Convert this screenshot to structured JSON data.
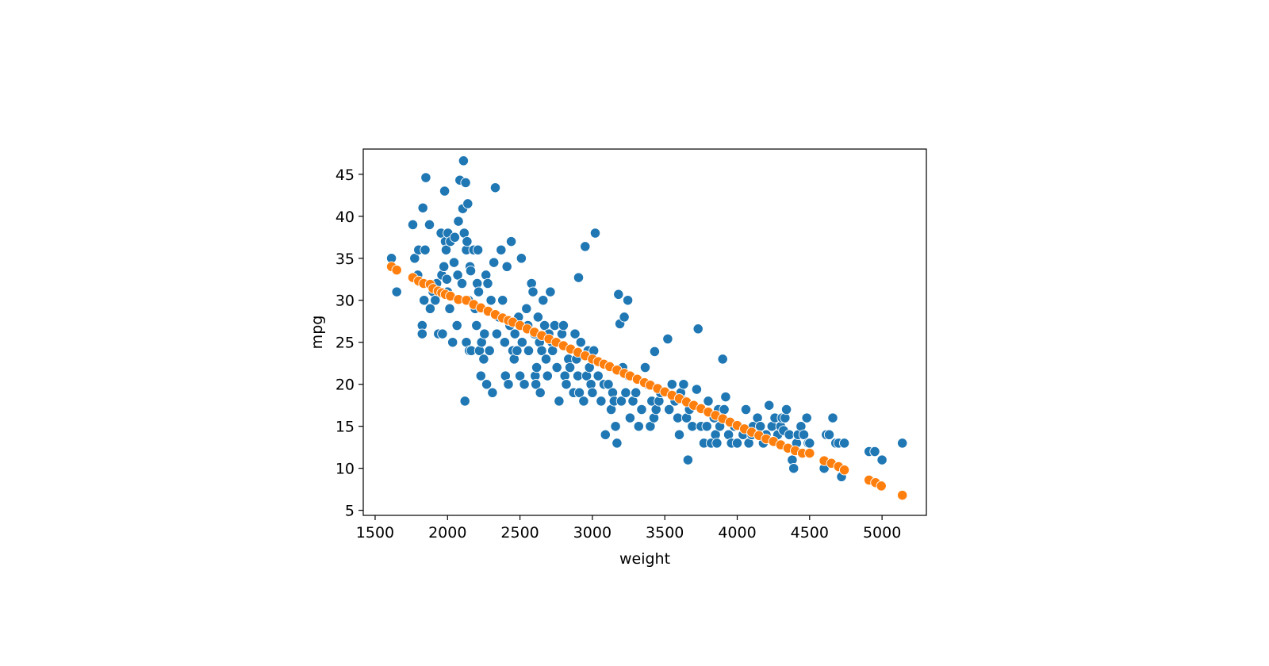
{
  "chart_data": {
    "type": "scatter",
    "title": "",
    "xlabel": "weight",
    "ylabel": "mpg",
    "xlim": [
      1418,
      5306
    ],
    "ylim": [
      4.4,
      48.0
    ],
    "xticks": [
      1500,
      2000,
      2500,
      3000,
      3500,
      4000,
      4500,
      5000
    ],
    "yticks": [
      5,
      10,
      15,
      20,
      25,
      30,
      35,
      40,
      45
    ],
    "grid": false,
    "legend": "none",
    "series": [
      {
        "color": "#1f77b4",
        "points": [
          [
            1613,
            35
          ],
          [
            1649,
            31
          ],
          [
            1760,
            39
          ],
          [
            1773,
            35
          ],
          [
            1795,
            33
          ],
          [
            1800,
            36
          ],
          [
            1825,
            27
          ],
          [
            1825,
            26
          ],
          [
            1830,
            41
          ],
          [
            1835,
            32
          ],
          [
            1838,
            30
          ],
          [
            1845,
            36
          ],
          [
            1850,
            44.6
          ],
          [
            1875,
            39
          ],
          [
            1880,
            29
          ],
          [
            1900,
            31
          ],
          [
            1915,
            30
          ],
          [
            1925,
            32
          ],
          [
            1937,
            26
          ],
          [
            1955,
            38
          ],
          [
            1960,
            33
          ],
          [
            1965,
            26
          ],
          [
            1975,
            34
          ],
          [
            1980,
            43
          ],
          [
            1985,
            37
          ],
          [
            1990,
            36
          ],
          [
            1995,
            32.5
          ],
          [
            2000,
            31
          ],
          [
            2003,
            38
          ],
          [
            2015,
            29
          ],
          [
            2020,
            37
          ],
          [
            2035,
            25
          ],
          [
            2045,
            34.5
          ],
          [
            2050,
            37.5
          ],
          [
            2065,
            27
          ],
          [
            2070,
            33
          ],
          [
            2075,
            39.4
          ],
          [
            2085,
            44.3
          ],
          [
            2100,
            32
          ],
          [
            2105,
            40.9
          ],
          [
            2110,
            46.6
          ],
          [
            2115,
            38
          ],
          [
            2120,
            18
          ],
          [
            2125,
            44
          ],
          [
            2130,
            36
          ],
          [
            2130,
            25
          ],
          [
            2135,
            37
          ],
          [
            2140,
            41.5
          ],
          [
            2145,
            30
          ],
          [
            2150,
            24
          ],
          [
            2155,
            34
          ],
          [
            2160,
            33.5
          ],
          [
            2164,
            24
          ],
          [
            2180,
            36
          ],
          [
            2190,
            29
          ],
          [
            2200,
            27
          ],
          [
            2205,
            32
          ],
          [
            2210,
            36
          ],
          [
            2215,
            31
          ],
          [
            2220,
            24
          ],
          [
            2230,
            21
          ],
          [
            2235,
            25
          ],
          [
            2250,
            23
          ],
          [
            2255,
            26
          ],
          [
            2265,
            33
          ],
          [
            2270,
            20
          ],
          [
            2278,
            32
          ],
          [
            2290,
            24
          ],
          [
            2300,
            30
          ],
          [
            2310,
            19
          ],
          [
            2320,
            34.5
          ],
          [
            2330,
            43.4
          ],
          [
            2340,
            26
          ],
          [
            2355,
            28
          ],
          [
            2370,
            36
          ],
          [
            2380,
            30
          ],
          [
            2395,
            25
          ],
          [
            2400,
            21
          ],
          [
            2410,
            34
          ],
          [
            2420,
            20
          ],
          [
            2430,
            27
          ],
          [
            2440,
            37
          ],
          [
            2450,
            24
          ],
          [
            2460,
            23
          ],
          [
            2465,
            26
          ],
          [
            2480,
            24
          ],
          [
            2490,
            28
          ],
          [
            2500,
            21
          ],
          [
            2510,
            35
          ],
          [
            2515,
            25
          ],
          [
            2530,
            20
          ],
          [
            2545,
            29
          ],
          [
            2555,
            27
          ],
          [
            2560,
            24
          ],
          [
            2580,
            32
          ],
          [
            2590,
            31
          ],
          [
            2600,
            26
          ],
          [
            2605,
            21
          ],
          [
            2610,
            20
          ],
          [
            2615,
            22
          ],
          [
            2625,
            28
          ],
          [
            2635,
            25
          ],
          [
            2640,
            19
          ],
          [
            2650,
            24
          ],
          [
            2660,
            30
          ],
          [
            2670,
            27
          ],
          [
            2680,
            23
          ],
          [
            2690,
            21
          ],
          [
            2700,
            26
          ],
          [
            2710,
            31
          ],
          [
            2720,
            25
          ],
          [
            2725,
            24
          ],
          [
            2740,
            27
          ],
          [
            2755,
            22
          ],
          [
            2770,
            18
          ],
          [
            2790,
            26
          ],
          [
            2800,
            27
          ],
          [
            2810,
            21
          ],
          [
            2820,
            20
          ],
          [
            2835,
            23
          ],
          [
            2845,
            22
          ],
          [
            2870,
            19
          ],
          [
            2880,
            26
          ],
          [
            2890,
            23
          ],
          [
            2900,
            21
          ],
          [
            2905,
            32.7
          ],
          [
            2910,
            19
          ],
          [
            2920,
            25
          ],
          [
            2940,
            18
          ],
          [
            2950,
            36.4
          ],
          [
            2960,
            21
          ],
          [
            2970,
            24
          ],
          [
            2980,
            22
          ],
          [
            2990,
            20
          ],
          [
            3000,
            19
          ],
          [
            3010,
            24
          ],
          [
            3020,
            38
          ],
          [
            3040,
            21
          ],
          [
            3060,
            18
          ],
          [
            3080,
            20
          ],
          [
            3090,
            14
          ],
          [
            3110,
            20
          ],
          [
            3130,
            17
          ],
          [
            3140,
            19
          ],
          [
            3150,
            18
          ],
          [
            3160,
            15
          ],
          [
            3170,
            13
          ],
          [
            3180,
            30.7
          ],
          [
            3190,
            27.2
          ],
          [
            3200,
            18
          ],
          [
            3210,
            22
          ],
          [
            3220,
            28
          ],
          [
            3230,
            19
          ],
          [
            3245,
            30
          ],
          [
            3250,
            21
          ],
          [
            3260,
            16
          ],
          [
            3280,
            18
          ],
          [
            3300,
            19
          ],
          [
            3320,
            15
          ],
          [
            3340,
            17
          ],
          [
            3365,
            22
          ],
          [
            3380,
            20
          ],
          [
            3400,
            15
          ],
          [
            3410,
            18
          ],
          [
            3425,
            16
          ],
          [
            3430,
            23.9
          ],
          [
            3440,
            17
          ],
          [
            3460,
            18
          ],
          [
            3470,
            19
          ],
          [
            3520,
            25.4
          ],
          [
            3530,
            17
          ],
          [
            3550,
            20
          ],
          [
            3570,
            18
          ],
          [
            3590,
            16
          ],
          [
            3600,
            14
          ],
          [
            3610,
            19
          ],
          [
            3630,
            20
          ],
          [
            3640,
            18
          ],
          [
            3650,
            16
          ],
          [
            3660,
            11
          ],
          [
            3670,
            17
          ],
          [
            3690,
            15
          ],
          [
            3720,
            19.4
          ],
          [
            3730,
            26.6
          ],
          [
            3750,
            15
          ],
          [
            3770,
            13
          ],
          [
            3790,
            15
          ],
          [
            3800,
            18
          ],
          [
            3820,
            13
          ],
          [
            3840,
            16
          ],
          [
            3850,
            14
          ],
          [
            3860,
            13
          ],
          [
            3870,
            17
          ],
          [
            3880,
            15
          ],
          [
            3900,
            23
          ],
          [
            3910,
            17
          ],
          [
            3920,
            18.5
          ],
          [
            3940,
            14
          ],
          [
            3960,
            13
          ],
          [
            3980,
            15
          ],
          [
            4000,
            13
          ],
          [
            4040,
            14
          ],
          [
            4060,
            17
          ],
          [
            4080,
            13
          ],
          [
            4100,
            14
          ],
          [
            4110,
            15
          ],
          [
            4140,
            16
          ],
          [
            4160,
            15
          ],
          [
            4180,
            13
          ],
          [
            4200,
            14
          ],
          [
            4220,
            17.5
          ],
          [
            4240,
            15
          ],
          [
            4260,
            16
          ],
          [
            4280,
            14
          ],
          [
            4300,
            15
          ],
          [
            4310,
            16
          ],
          [
            4320,
            14.5
          ],
          [
            4330,
            16
          ],
          [
            4340,
            17
          ],
          [
            4360,
            14
          ],
          [
            4380,
            11
          ],
          [
            4390,
            10
          ],
          [
            4410,
            13
          ],
          [
            4420,
            14
          ],
          [
            4440,
            15
          ],
          [
            4460,
            14
          ],
          [
            4480,
            16
          ],
          [
            4490,
            13
          ],
          [
            4500,
            13
          ],
          [
            4600,
            10
          ],
          [
            4615,
            14
          ],
          [
            4635,
            14
          ],
          [
            4660,
            16
          ],
          [
            4680,
            13
          ],
          [
            4700,
            13
          ],
          [
            4720,
            9
          ],
          [
            4740,
            13
          ],
          [
            4910,
            12
          ],
          [
            4950,
            12
          ],
          [
            5000,
            11
          ],
          [
            5140,
            13
          ]
        ]
      },
      {
        "color": "#ff7f0e",
        "points": [
          [
            1613,
            34
          ],
          [
            1649,
            33.6
          ],
          [
            1760,
            32.7
          ],
          [
            1800,
            32.3
          ],
          [
            1835,
            32
          ],
          [
            1880,
            31.9
          ],
          [
            1900,
            31.4
          ],
          [
            1935,
            31.1
          ],
          [
            1960,
            30.9
          ],
          [
            1985,
            30.7
          ],
          [
            2020,
            30.5
          ],
          [
            2075,
            30.1
          ],
          [
            2130,
            30
          ],
          [
            2180,
            29.5
          ],
          [
            2230,
            29.1
          ],
          [
            2280,
            28.7
          ],
          [
            2330,
            28.3
          ],
          [
            2380,
            27.9
          ],
          [
            2420,
            27.6
          ],
          [
            2450,
            27.4
          ],
          [
            2500,
            27
          ],
          [
            2550,
            26.6
          ],
          [
            2600,
            26.2
          ],
          [
            2650,
            25.8
          ],
          [
            2700,
            25.4
          ],
          [
            2750,
            25
          ],
          [
            2800,
            24.6
          ],
          [
            2850,
            24.2
          ],
          [
            2900,
            23.8
          ],
          [
            2950,
            23.4
          ],
          [
            3000,
            23
          ],
          [
            3040,
            22.7
          ],
          [
            3080,
            22.4
          ],
          [
            3120,
            22.1
          ],
          [
            3170,
            21.7
          ],
          [
            3220,
            21.3
          ],
          [
            3260,
            21
          ],
          [
            3310,
            20.6
          ],
          [
            3360,
            20.2
          ],
          [
            3400,
            19.9
          ],
          [
            3450,
            19.5
          ],
          [
            3500,
            19.1
          ],
          [
            3550,
            18.7
          ],
          [
            3600,
            18.3
          ],
          [
            3650,
            17.9
          ],
          [
            3700,
            17.5
          ],
          [
            3750,
            17.1
          ],
          [
            3800,
            16.7
          ],
          [
            3850,
            16.3
          ],
          [
            3900,
            15.9
          ],
          [
            3950,
            15.5
          ],
          [
            4000,
            15.1
          ],
          [
            4050,
            14.7
          ],
          [
            4100,
            14.3
          ],
          [
            4150,
            13.9
          ],
          [
            4200,
            13.5
          ],
          [
            4250,
            13.2
          ],
          [
            4300,
            12.8
          ],
          [
            4350,
            12.4
          ],
          [
            4400,
            12.1
          ],
          [
            4450,
            11.8
          ],
          [
            4500,
            11.8
          ],
          [
            4600,
            10.9
          ],
          [
            4650,
            10.6
          ],
          [
            4700,
            10.2
          ],
          [
            4740,
            9.8
          ],
          [
            4910,
            8.6
          ],
          [
            4955,
            8.3
          ],
          [
            4995,
            7.9
          ],
          [
            5140,
            6.8
          ]
        ]
      }
    ]
  }
}
